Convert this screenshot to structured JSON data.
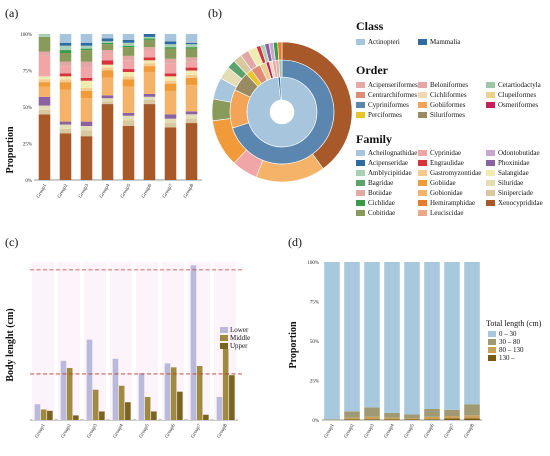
{
  "colors": {
    "Actinopteri": "#a7c5dc",
    "Mammalia": "#2f6aa0",
    "Acipenseriformes": "#e8a8a8",
    "Beloniformes": "#e6a7a8",
    "Cetartiodactyla": "#9ec7a8",
    "Centrarchiformes": "#e08a78",
    "Cichliformes": "#f2d7b0",
    "Clupeiformes": "#e9d28e",
    "Cypriniformes": "#5a86b0",
    "Gobiiformes": "#f3a456",
    "Osmeriformes": "#c71e5d",
    "Perciformes": "#e7c52a",
    "Siluriformes": "#9a8a62",
    "Acheilognathidae": "#a7c5dc",
    "Acipenseridae": "#2f6aa0",
    "Amblycipitidae": "#a8d0b4",
    "Bagridae": "#5aa36a",
    "Botiidae": "#e3a8a6",
    "Cichlidae": "#3a9a46",
    "Cobitidae": "#8a9a5b",
    "Cyprinidae": "#f0a6a6",
    "Engraulidae": "#d8323a",
    "Gastromyzontidae": "#f6c98d",
    "Gobiidae": "#f09a3a",
    "Gobionidae": "#f5b36a",
    "Hemiramphidae": "#e87c2a",
    "Leuciscidae": "#e9a88a",
    "Odontobutidae": "#c9a8cf",
    "Phoxinidae": "#8a62a0",
    "Salangidae": "#f0ecb0",
    "Siluridae": "#e3ddb5",
    "Siniperciade": "#d9c7a0",
    "Xenocyprididae": "#a8592a",
    "lower": "#b9b9da",
    "middle": "#a08a40",
    "upper": "#7a6520",
    "redline": "#c0392b",
    "len_0_30": "#a8c8de",
    "len_30_80": "#a09a74",
    "len_80_130": "#c9a15a",
    "len_130": "#7a5a10"
  },
  "panel_a": {
    "label": "(a)",
    "chart_data": {
      "type": "bar",
      "stacked": true,
      "ylabel": "Proportion",
      "categories": [
        "Group1",
        "Group2",
        "Group3",
        "Group4",
        "Group5",
        "Group6",
        "Group7",
        "Group8"
      ],
      "yticks": [
        "0%",
        "25%",
        "50%",
        "75%",
        "100%"
      ],
      "ylim": [
        0,
        100
      ],
      "series": [
        {
          "name": "Xenocyprididae",
          "values": [
            45,
            32,
            30,
            52,
            37,
            52,
            36,
            39
          ]
        },
        {
          "name": "Siniperciade",
          "values": [
            3,
            3,
            4,
            2,
            4,
            3,
            3,
            3
          ]
        },
        {
          "name": "Siluridae",
          "values": [
            3,
            3,
            3,
            2,
            3,
            2,
            3,
            3
          ]
        },
        {
          "name": "Phoxinidae",
          "values": [
            6,
            2,
            3,
            2,
            2,
            2,
            3,
            2
          ]
        },
        {
          "name": "Gobionidae",
          "values": [
            7,
            22,
            16,
            12,
            18,
            15,
            16,
            18
          ]
        },
        {
          "name": "Gobiidae",
          "values": [
            3,
            5,
            5,
            5,
            5,
            4,
            5,
            5
          ]
        },
        {
          "name": "Gastromyzontidae",
          "values": [
            2,
            2,
            2,
            2,
            2,
            2,
            2,
            2
          ]
        },
        {
          "name": "Salangidae",
          "values": [
            2,
            2,
            5,
            2,
            3,
            2,
            3,
            3
          ]
        },
        {
          "name": "Engraulidae",
          "values": [
            0,
            2,
            2,
            3,
            2,
            2,
            2,
            2
          ]
        },
        {
          "name": "Cyprinidae",
          "values": [
            14,
            5,
            7,
            5,
            6,
            5,
            7,
            4
          ]
        },
        {
          "name": "Botiidae",
          "values": [
            3,
            3,
            4,
            2,
            3,
            2,
            3,
            3
          ]
        },
        {
          "name": "Cobitidae",
          "values": [
            10,
            6,
            8,
            4,
            6,
            5,
            7,
            6
          ]
        },
        {
          "name": "Cichlidae",
          "values": [
            0,
            2,
            1,
            1,
            1,
            1,
            1,
            1
          ]
        },
        {
          "name": "Amblycipitidae",
          "values": [
            2,
            3,
            2,
            1,
            2,
            1,
            2,
            2
          ]
        },
        {
          "name": "Acipenseridae",
          "values": [
            0,
            2,
            2,
            2,
            2,
            2,
            2,
            1
          ]
        },
        {
          "name": "Acheilognathidae",
          "values": [
            0,
            6,
            6,
            3,
            4,
            0,
            5,
            6
          ]
        }
      ]
    }
  },
  "panel_b": {
    "label": "(b)",
    "chart_data": {
      "type": "pie",
      "rings": [
        {
          "name": "Class",
          "slices": [
            {
              "label": "Actinopteri",
              "value": 99
            },
            {
              "label": "Mammalia",
              "value": 1
            }
          ]
        },
        {
          "name": "Order",
          "slices": [
            {
              "label": "Cypriniformes",
              "value": 70
            },
            {
              "label": "Gobiiformes",
              "value": 12
            },
            {
              "label": "Siluriformes",
              "value": 6
            },
            {
              "label": "Perciformes",
              "value": 2
            },
            {
              "label": "Centrarchiformes",
              "value": 3
            },
            {
              "label": "Clupeiformes",
              "value": 2
            },
            {
              "label": "Osmeriformes",
              "value": 1
            },
            {
              "label": "Cichliformes",
              "value": 1
            },
            {
              "label": "Beloniformes",
              "value": 1
            },
            {
              "label": "Acipenseriformes",
              "value": 1
            },
            {
              "label": "Cetartiodactyla",
              "value": 1
            }
          ]
        },
        {
          "name": "Family",
          "slices": [
            {
              "label": "Xenocyprididae",
              "value": 40
            },
            {
              "label": "Gobionidae",
              "value": 16
            },
            {
              "label": "Cyprinidae",
              "value": 6
            },
            {
              "label": "Gobiidae",
              "value": 11
            },
            {
              "label": "Cobitidae",
              "value": 5
            },
            {
              "label": "Acheilognathidae",
              "value": 5
            },
            {
              "label": "Siluridae",
              "value": 3
            },
            {
              "label": "Bagridae",
              "value": 2
            },
            {
              "label": "Siniperciade",
              "value": 2
            },
            {
              "label": "Botiidae",
              "value": 2
            },
            {
              "label": "Salangidae",
              "value": 2
            },
            {
              "label": "Engraulidae",
              "value": 1
            },
            {
              "label": "Amblycipitidae",
              "value": 1
            },
            {
              "label": "Phoxinidae",
              "value": 1
            },
            {
              "label": "Odontobutidae",
              "value": 1
            },
            {
              "label": "Cichlidae",
              "value": 1
            },
            {
              "label": "Hemiramphidae",
              "value": 1
            }
          ]
        }
      ]
    },
    "legend": {
      "class_title": "Class",
      "class_items": [
        "Actinopteri",
        "Mammalia"
      ],
      "order_title": "Order",
      "order_items": [
        [
          "Acipenseriformes",
          "Beloniformes",
          "Cetartiodactyla"
        ],
        [
          "Centrarchiformes",
          "Cichliformes",
          "Clupeiformes"
        ],
        [
          "Cypriniformes",
          "Gobiiformes",
          "Osmeriformes"
        ],
        [
          "Perciformes",
          "Siluriformes",
          ""
        ]
      ],
      "family_title": "Family",
      "family_items": [
        [
          "Acheilognathidae",
          "Cyprinidae",
          "Odontobutidae"
        ],
        [
          "Acipenseridae",
          "Engraulidae",
          "Phoxinidae"
        ],
        [
          "Amblycipitidae",
          "Gastromyzontidae",
          "Salangidae"
        ],
        [
          "Bagridae",
          "Gobiidae",
          "Siluridae"
        ],
        [
          "Botiidae",
          "Gobionidae",
          "Siniperciade"
        ],
        [
          "Cichlidae",
          "Hemiramphidae",
          "Xenocyprididae"
        ],
        [
          "Cobitidae",
          "Leuciscidae",
          ""
        ]
      ]
    }
  },
  "panel_c": {
    "label": "(c)",
    "chart_data": {
      "type": "bar",
      "ylabel": "Body lenght (cm)",
      "categories": [
        "Group1",
        "Group2",
        "Group3",
        "Group4",
        "Group5",
        "Group6",
        "Group7",
        "Group8"
      ],
      "ylim": [
        0,
        240
      ],
      "series": [
        {
          "name": "Lower",
          "values": [
            24,
            90,
            122,
            93,
            71,
            86,
            235,
            35
          ]
        },
        {
          "name": "Middle",
          "values": [
            16,
            79,
            46,
            52,
            35,
            80,
            82,
            108
          ]
        },
        {
          "name": "Upper",
          "values": [
            14,
            7,
            13,
            27,
            13,
            43,
            8,
            68
          ]
        }
      ],
      "reference_lines": [
        228,
        70
      ]
    }
  },
  "panel_d": {
    "label": "(d)",
    "chart_data": {
      "type": "bar",
      "stacked": true,
      "ylabel": "Proportion",
      "legend_title": "Total length (cm)",
      "categories": [
        "Group1",
        "Group2",
        "Group3",
        "Group4",
        "Group5",
        "Group6",
        "Group7",
        "Group8"
      ],
      "yticks": [
        "0%",
        "25%",
        "50%",
        "75%",
        "100%"
      ],
      "ylim": [
        0,
        100
      ],
      "series": [
        {
          "name": "130 –",
          "values": [
            0,
            0.5,
            0.5,
            0.5,
            0.5,
            0.5,
            1,
            1
          ]
        },
        {
          "name": "80 – 130",
          "values": [
            0,
            1,
            1.5,
            1,
            0.5,
            1.5,
            1.5,
            2
          ]
        },
        {
          "name": "30 – 80",
          "values": [
            0.5,
            4,
            6,
            3,
            2.5,
            5,
            4,
            7
          ]
        },
        {
          "name": "0 – 30",
          "values": [
            99.5,
            94.5,
            92,
            95.5,
            96.5,
            93,
            93.5,
            90
          ]
        }
      ]
    }
  }
}
